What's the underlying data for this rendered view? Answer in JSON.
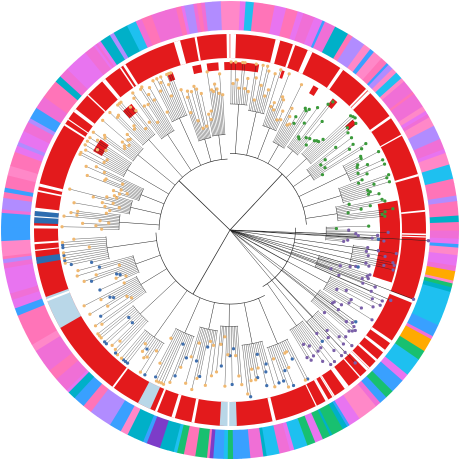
{
  "figure": {
    "type": "circular-phylogenetic-tree",
    "seed": 7,
    "leaf_count": 420
  },
  "palette": {
    "tip_green": "#3a9a3a",
    "tip_orange": "#f0b870",
    "tip_blue": "#3f6fae",
    "tip_purple": "#7a5fa8",
    "branch": "#222222",
    "ring_red": "#e31a1c",
    "ring_light": "#b9d7e8",
    "ring_blue": "#2b6cb0",
    "outer": [
      "#f06fd6",
      "#ff74b8",
      "#e874f0",
      "#ff88c8",
      "#b18cff",
      "#1ec0f0",
      "#39a0ff",
      "#00b0c8",
      "#18c070",
      "#ffaa00",
      "#7d3cc8",
      "#cc2e2e",
      "#5555dd"
    ]
  },
  "rings": {
    "inner_marks": "red",
    "middle_band": "red-with-white-gaps",
    "outer_band": "multicolor"
  }
}
